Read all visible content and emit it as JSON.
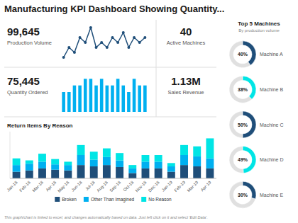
{
  "chart_data": [
    {
      "type": "dashboard",
      "title": "Manufacturing KPI Dashboard Showing Quantity...",
      "annotations": [
        "This graph/chart is linked to excel, and changes automatically based on data.  Just left click on it and select 'Edit Data'."
      ]
    },
    {
      "type": "kpi",
      "title": "Production Volume",
      "values": [
        99645
      ],
      "value_labels": [
        "99,645"
      ],
      "data_labels": true
    },
    {
      "type": "line",
      "x": [
        0,
        1,
        2,
        3,
        4,
        5,
        6,
        7,
        8,
        9,
        10,
        11,
        12,
        13,
        14,
        15
      ],
      "values": [
        3,
        5,
        4,
        7,
        6,
        9,
        5,
        6,
        5,
        7,
        6,
        8,
        5,
        7,
        6,
        7
      ],
      "color": "#1f4e79",
      "marker": "circle",
      "xlim": [
        -1,
        16
      ],
      "ylim": [
        2,
        10
      ],
      "tick_labels": false,
      "grid": false
    },
    {
      "type": "kpi",
      "title": "Quantity Ordered",
      "values": [
        75445
      ],
      "value_labels": [
        "75,445"
      ],
      "data_labels": true
    },
    {
      "type": "bar",
      "x": [
        0,
        1,
        2,
        3,
        4,
        5,
        6,
        7,
        8,
        9,
        10,
        11,
        12,
        13,
        14,
        15
      ],
      "values": [
        3,
        3,
        4,
        4,
        5,
        5,
        4,
        5,
        4,
        4,
        5,
        4,
        3,
        5,
        4,
        4
      ],
      "color": "#00b0f0",
      "xlim": [
        -1,
        16
      ],
      "ylim": [
        0,
        6
      ],
      "tick_labels": false,
      "grid": false
    },
    {
      "type": "kpi",
      "title": "Active Machines",
      "values": [
        40
      ],
      "data_labels": true
    },
    {
      "type": "kpi",
      "title": "Sales Revenue",
      "values": [
        1130000
      ],
      "value_labels": [
        "1.13M"
      ],
      "data_labels": true
    },
    {
      "type": "bar",
      "title": "Return Items By Reason",
      "stacked": true,
      "categories": [
        "Jan-18",
        "Feb-18",
        "Mar-18",
        "Apr-18",
        "May-18",
        "Jun-18",
        "Jul-18",
        "Aug-18",
        "Sep-18",
        "Oct-18",
        "Nov-18",
        "Dec-18",
        "Jan-19",
        "Feb-19",
        "Mar-19",
        "Apr-19"
      ],
      "series": [
        {
          "name": "Broken",
          "color": "#1f4e79",
          "values": [
            1.0,
            1.2,
            1.5,
            1.3,
            1.2,
            2.0,
            1.8,
            2.0,
            1.7,
            0.8,
            1.5,
            1.5,
            1.0,
            2.0,
            1.8,
            1.5
          ]
        },
        {
          "name": "Other Than Imagined",
          "color": "#00b0f0",
          "values": [
            1.0,
            1.0,
            1.0,
            0.8,
            0.8,
            1.5,
            1.0,
            1.2,
            1.0,
            0.7,
            1.0,
            1.0,
            0.8,
            1.5,
            1.5,
            1.5
          ]
        },
        {
          "name": "No Reason",
          "color": "#00e5e5",
          "values": [
            1.0,
            0.5,
            1.2,
            0.8,
            0.5,
            1.5,
            1.2,
            1.3,
            1.1,
            0.5,
            1.0,
            1.0,
            0.5,
            1.5,
            1.5,
            3.0
          ]
        }
      ],
      "ylim": [
        0,
        7
      ],
      "tick_labels": "x",
      "legend": "bottom",
      "grid": false
    },
    {
      "type": "donut",
      "title": "Top 5 Machines",
      "subtitle": "By production volume",
      "categories": [
        "Machine A",
        "Machine B",
        "Machine C",
        "Machine D",
        "Machine E"
      ],
      "values": [
        40,
        38,
        50,
        49,
        30
      ],
      "value_labels": [
        "40%",
        "38%",
        "50%",
        "49%",
        "30%"
      ],
      "colors": [
        "#1f4e79",
        "#00e5e5",
        "#1f4e79",
        "#00e5e5",
        "#1f4e79"
      ],
      "ylim": [
        0,
        100
      ],
      "data_labels": true
    }
  ]
}
